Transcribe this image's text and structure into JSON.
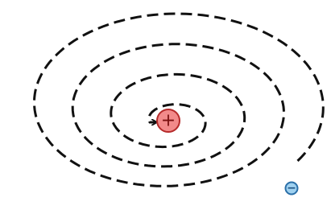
{
  "nucleus": {
    "label": "+"
  },
  "electron": {
    "label": "−"
  }
}
